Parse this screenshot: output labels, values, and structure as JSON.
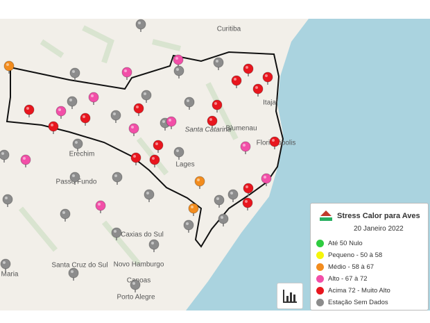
{
  "map": {
    "places": [
      "Curitiba",
      "Blumenau",
      "Itajaí",
      "Santa Catarina",
      "Florianópolis",
      "Lages",
      "Erechim",
      "Passo Fundo",
      "Caxias do Sul",
      "Santa Cruz do Sul",
      "Novo Hamburgo",
      "Canoas",
      "Porto Alegre",
      "Maria"
    ]
  },
  "legend": {
    "title": "Stress Calor para Aves",
    "date": "20 Janeiro 2022",
    "items": [
      {
        "label": "Até 50 Nulo",
        "color": "#2ecc40"
      },
      {
        "label": "Pequeno - 50 à 58",
        "color": "#f5f50a"
      },
      {
        "label": "Médio - 58 à 67",
        "color": "#f28c1e"
      },
      {
        "label": "Alto - 67 à 72",
        "color": "#f24fa8"
      },
      {
        "label": "Acima 72 - Muito Alto",
        "color": "#e8161e"
      },
      {
        "label": "Estação Sem Dados",
        "color": "#8c8c8c"
      }
    ]
  }
}
